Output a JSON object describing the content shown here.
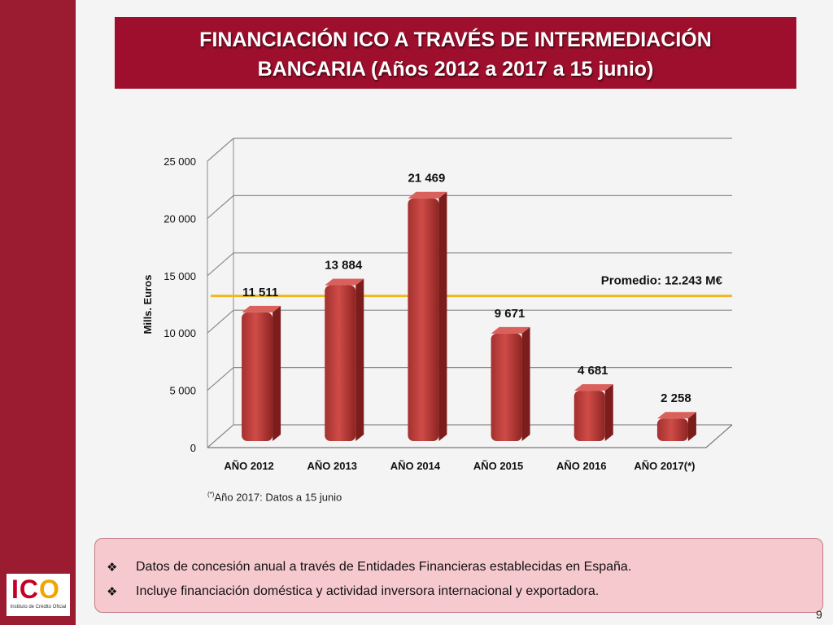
{
  "slide": {
    "title_line1": "FINANCIACIÓN ICO A TRAVÉS DE INTERMEDIACIÓN",
    "title_line2": "BANCARIA (Años 2012 a 2017 a 15 junio)",
    "footnote_mark": "(*)",
    "footnote_text": "Año 2017: Datos a 15 junio",
    "notes": [
      "Datos de concesión anual a través de Entidades Financieras establecidas en España.",
      "Incluye financiación doméstica y actividad inversora internacional y exportadora."
    ],
    "note_bullet": "❖",
    "page_number": "9",
    "logo_text": "ICO",
    "logo_subtitle": "Instituto de Crédito Oficial"
  },
  "chart_data": {
    "type": "bar",
    "title": "",
    "ylabel": "Mills. Euros",
    "xlabel": "",
    "categories": [
      "AÑO 2012",
      "AÑO 2013",
      "AÑO 2014",
      "AÑO 2015",
      "AÑO 2016",
      "AÑO 2017(*)"
    ],
    "values": [
      11511,
      13884,
      21469,
      9671,
      4681,
      2258
    ],
    "value_labels": [
      "11 511",
      "13 884",
      "21 469",
      "9 671",
      "4 681",
      "2 258"
    ],
    "ylim": [
      0,
      25000
    ],
    "yticks": [
      0,
      5000,
      10000,
      15000,
      20000,
      25000
    ],
    "ytick_labels": [
      "0",
      "5 000",
      "10 000",
      "15 000",
      "20 000",
      "25 000"
    ],
    "grid": true,
    "average_line": {
      "value": 12243,
      "label": "Promedio: 12.243 M€",
      "color": "#f0b81e"
    },
    "bar_color": "#c0413f",
    "colors": {
      "title_bg": "#9e0f2d",
      "side_band": "#9b1b30",
      "notes_bg": "#f6c9cf"
    }
  }
}
